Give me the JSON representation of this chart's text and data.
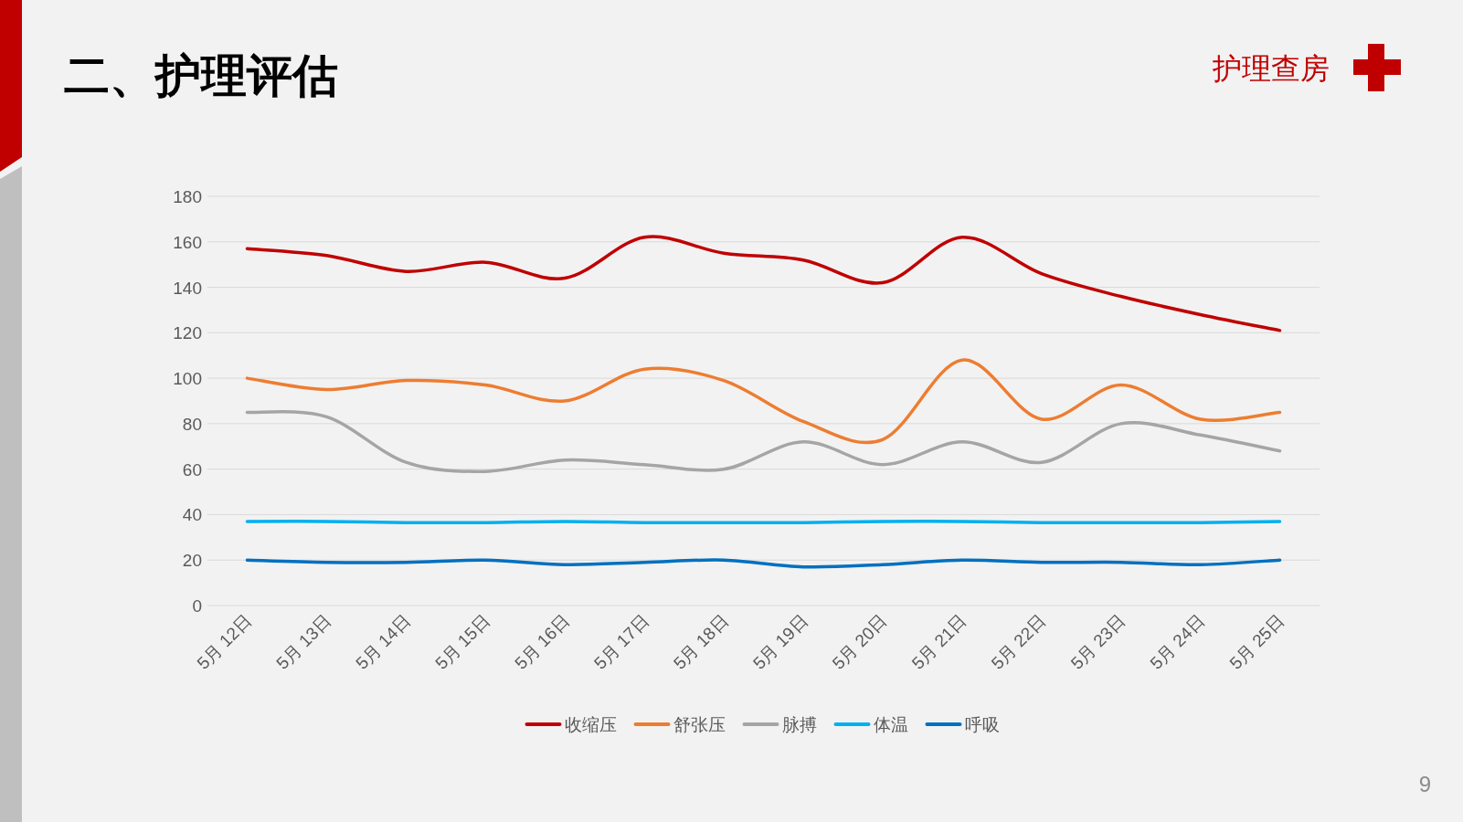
{
  "chart_data": {
    "type": "line",
    "title": "二、护理评估",
    "subtitle": "护理查房",
    "categories": [
      "5月 12日",
      "5月 13日",
      "5月 14日",
      "5月 15日",
      "5月 16日",
      "5月 17日",
      "5月 18日",
      "5月 19日",
      "5月 20日",
      "5月 21日",
      "5月 22日",
      "5月 23日",
      "5月 24日",
      "5月 25日"
    ],
    "series": [
      {
        "name": "收缩压",
        "color": "#c00000",
        "values": [
          157,
          154,
          147,
          151,
          144,
          162,
          155,
          152,
          142,
          162,
          146,
          136,
          128,
          121
        ]
      },
      {
        "name": "舒张压",
        "color": "#ed7d31",
        "values": [
          100,
          95,
          99,
          97,
          90,
          104,
          99,
          81,
          73,
          108,
          82,
          97,
          82,
          85
        ]
      },
      {
        "name": "脉搏",
        "color": "#a5a5a5",
        "values": [
          85,
          83,
          63,
          59,
          64,
          62,
          60,
          72,
          62,
          72,
          63,
          80,
          75,
          68
        ]
      },
      {
        "name": "体温",
        "color": "#00b0f0",
        "values": [
          37,
          37,
          36.5,
          36.5,
          37,
          36.5,
          36.5,
          36.5,
          37,
          37,
          36.5,
          36.5,
          36.5,
          37
        ]
      },
      {
        "name": "呼吸",
        "color": "#0070c0",
        "values": [
          20,
          19,
          19,
          20,
          18,
          19,
          20,
          17,
          18,
          20,
          19,
          19,
          18,
          20
        ]
      }
    ],
    "ylim": [
      0,
      180
    ],
    "yticks": [
      0,
      20,
      40,
      60,
      80,
      100,
      120,
      140,
      160,
      180
    ],
    "grid": "y",
    "legend": "bottom",
    "marker": "none",
    "line_style": "solid",
    "annotations": [
      "9"
    ]
  }
}
